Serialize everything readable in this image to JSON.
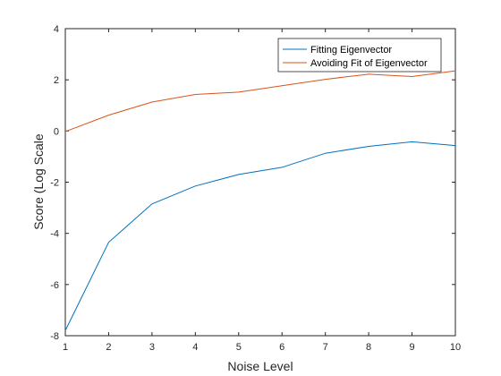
{
  "chart_data": {
    "type": "line",
    "title": "",
    "xlabel": "Noise Level",
    "ylabel": "Score (Log Scale",
    "xlim": [
      1,
      10
    ],
    "ylim": [
      -8,
      4
    ],
    "xticks": [
      1,
      2,
      3,
      4,
      5,
      6,
      7,
      8,
      9,
      10
    ],
    "yticks": [
      -8,
      -6,
      -4,
      -2,
      0,
      2,
      4
    ],
    "grid": false,
    "legend_position": "top-right",
    "x": [
      1,
      2,
      3,
      4,
      5,
      6,
      7,
      8,
      9,
      10
    ],
    "series": [
      {
        "name": "Fitting Eigenvector",
        "color": "#0072BD",
        "values": [
          -7.8,
          -4.35,
          -2.85,
          -2.15,
          -1.7,
          -1.42,
          -0.87,
          -0.6,
          -0.42,
          -0.57
        ]
      },
      {
        "name": "Avoiding Fit of Eigenvector",
        "color": "#D95319",
        "values": [
          -0.02,
          0.62,
          1.13,
          1.43,
          1.52,
          1.77,
          2.02,
          2.22,
          2.13,
          2.35
        ]
      }
    ]
  }
}
